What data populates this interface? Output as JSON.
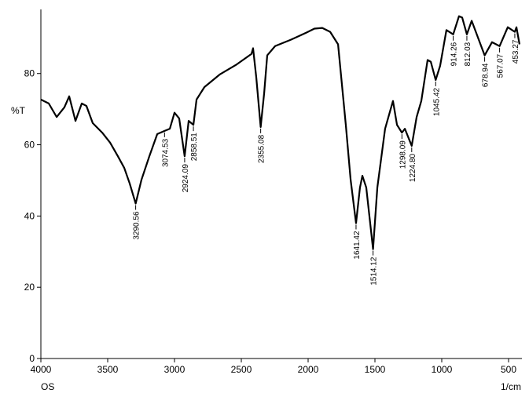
{
  "chart_data": {
    "type": "line",
    "y_label": "%T",
    "x_label": "1/cm",
    "sample_label": "OS",
    "xlim": [
      4000,
      400
    ],
    "ylim": [
      0,
      98
    ],
    "xticks": [
      4000,
      3500,
      3000,
      2500,
      2000,
      1500,
      1000,
      500
    ],
    "yticks": [
      0,
      20,
      40,
      60,
      80
    ],
    "series": [
      {
        "color": "#000000",
        "x": [
          4000,
          3941,
          3882,
          3824,
          3788,
          3741,
          3694,
          3659,
          3612,
          3541,
          3482,
          3424,
          3376,
          3335,
          3290.6,
          3247,
          3188,
          3129,
          3074.5,
          3035,
          3000,
          2965,
          2924.1,
          2894,
          2858.5,
          2835,
          2776,
          2659,
          2541,
          2424,
          2412,
          2388,
          2355.1,
          2329,
          2306,
          2247,
          2129,
          2012,
          1953,
          1894,
          1835,
          1776,
          1718,
          1682,
          1641.4,
          1612,
          1594,
          1565,
          1514.1,
          1482,
          1424,
          1365,
          1335,
          1298.1,
          1276,
          1224.8,
          1188,
          1153,
          1106,
          1082,
          1045.4,
          1012,
          965,
          914.3,
          871,
          847,
          812,
          776,
          678.9,
          624,
          567.1,
          506,
          453.3,
          441,
          418
        ],
        "values": [
          72.7,
          71.6,
          67.8,
          70.5,
          73.6,
          66.7,
          71.6,
          70.9,
          66.1,
          63.4,
          60.6,
          56.8,
          53.5,
          49.1,
          43.5,
          50.2,
          56.8,
          63.0,
          63.9,
          64.5,
          69.0,
          67.4,
          56.8,
          66.7,
          65.6,
          72.7,
          76.2,
          79.8,
          82.4,
          85.5,
          87.1,
          78.9,
          65.0,
          74.5,
          85.1,
          87.7,
          89.5,
          91.5,
          92.6,
          92.8,
          91.7,
          88.2,
          65.6,
          50.2,
          38.0,
          48.0,
          51.3,
          48.0,
          30.7,
          48.0,
          64.5,
          72.3,
          65.6,
          63.4,
          64.5,
          59.7,
          67.8,
          72.3,
          83.8,
          83.3,
          78.2,
          82.2,
          92.2,
          91.0,
          96.1,
          95.7,
          91.0,
          94.8,
          85.1,
          88.8,
          87.7,
          93.0,
          91.7,
          93.0,
          88.2
        ]
      }
    ],
    "peak_x": [
      3290.56,
      3074.53,
      2924.09,
      2858.51,
      2355.08,
      1641.42,
      1514.12,
      1298.09,
      1224.8,
      1045.42,
      914.26,
      812.03,
      678.94,
      567.07,
      453.27
    ],
    "peak_y": [
      43.5,
      63.9,
      56.8,
      65.6,
      65.0,
      38.0,
      30.7,
      63.4,
      59.7,
      78.2,
      91.0,
      91.0,
      85.1,
      87.7,
      91.7
    ],
    "peak_labels": [
      "3290.56",
      "3074.53",
      "2924.09",
      "2858.51",
      "2355.08",
      "1641.42",
      "1514.12",
      "1298.09",
      "1224.80",
      "1045.42",
      "914.26",
      "812.03",
      "678.94",
      "567.07",
      "453.27"
    ]
  }
}
